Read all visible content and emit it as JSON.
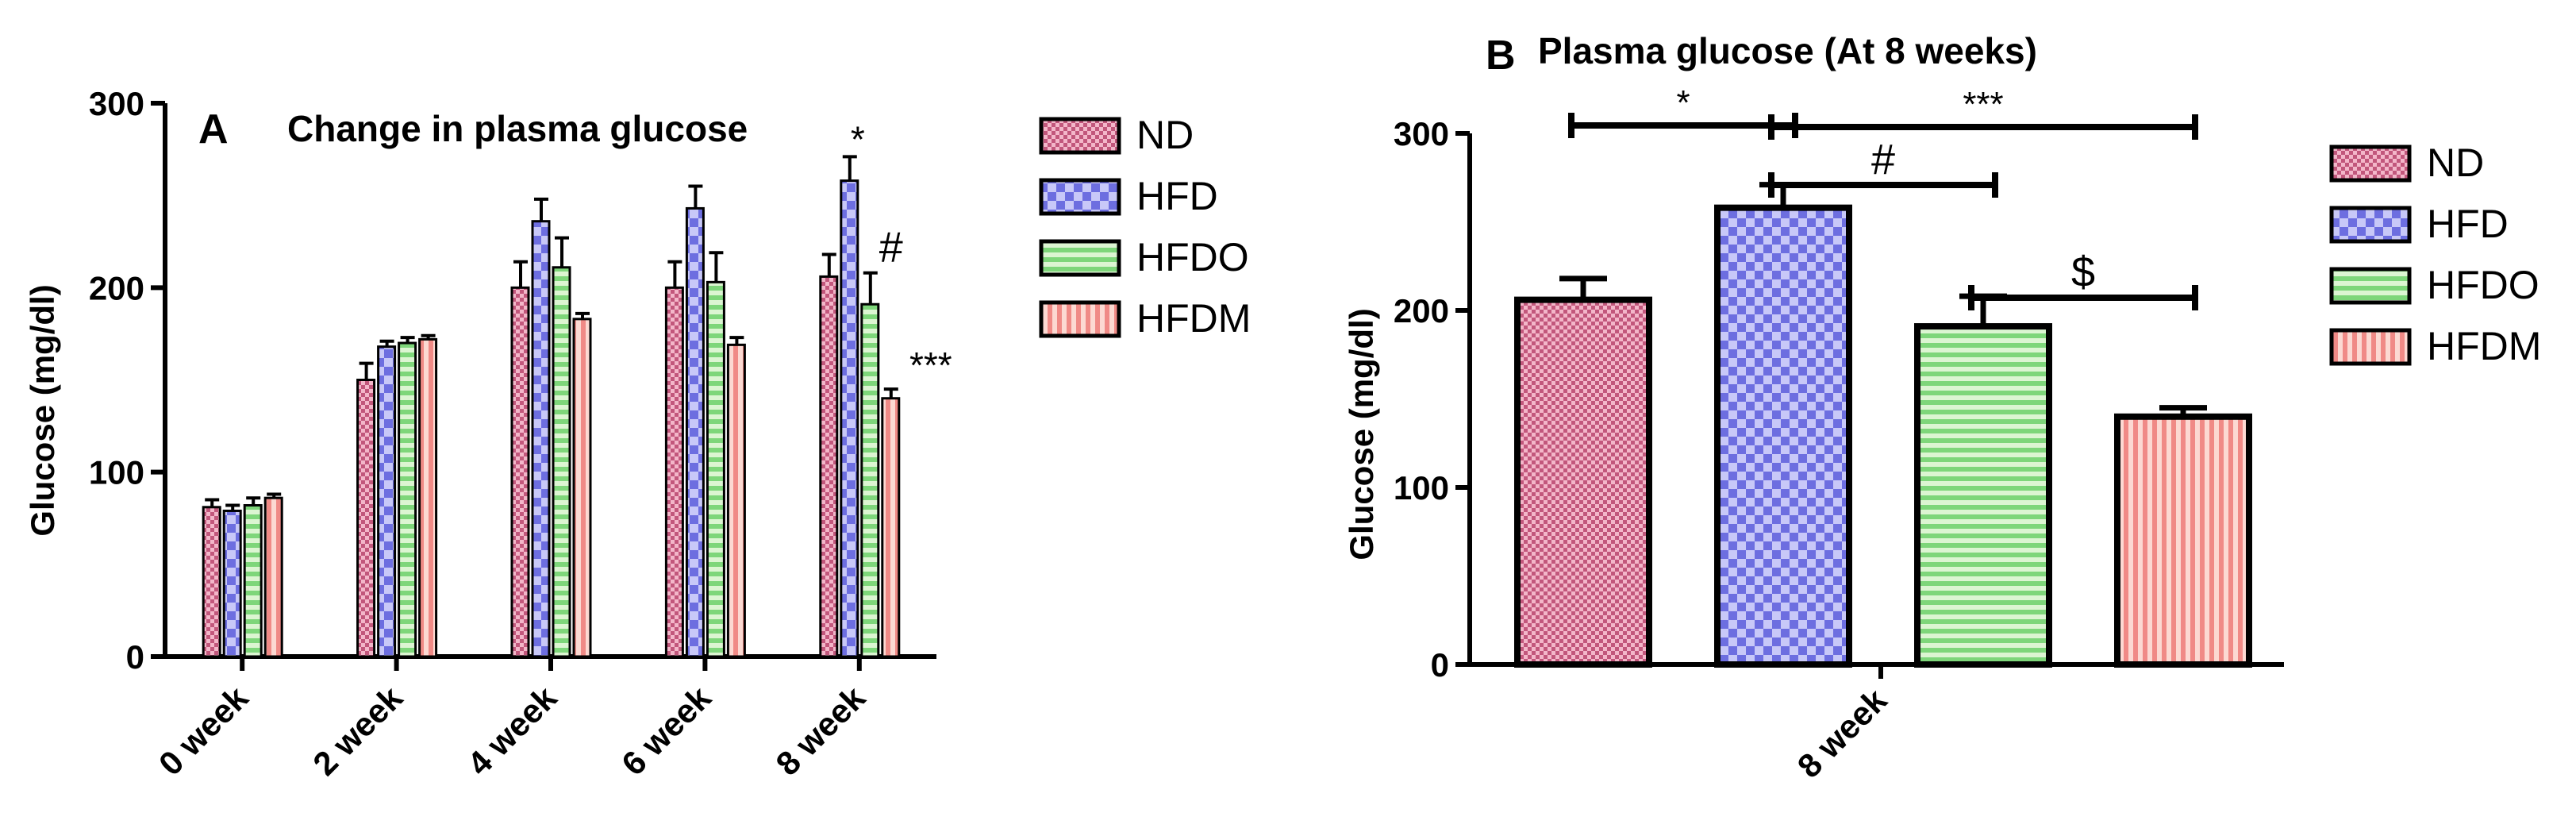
{
  "chart_data": [
    {
      "panel": "A",
      "type": "bar",
      "title": "Change in plasma glucose",
      "ylabel": "Glucose (mg/dl)",
      "xlabel": "",
      "ylim": [
        0,
        300
      ],
      "yticks": [
        0,
        100,
        200,
        300
      ],
      "categories": [
        "0 week",
        "2 week",
        "4 week",
        "6 week",
        "8 week"
      ],
      "series": [
        {
          "name": "ND",
          "values": [
            81,
            150,
            200,
            200,
            206
          ],
          "errors": [
            4,
            9,
            14,
            14,
            12
          ]
        },
        {
          "name": "HFD",
          "values": [
            79,
            168,
            236,
            243,
            258
          ],
          "errors": [
            3,
            3,
            12,
            12,
            13
          ]
        },
        {
          "name": "HFDO",
          "values": [
            82,
            170,
            211,
            203,
            191
          ],
          "errors": [
            4,
            3,
            16,
            16,
            17
          ]
        },
        {
          "name": "HFDM",
          "values": [
            86,
            172,
            183,
            169,
            140
          ],
          "errors": [
            2,
            2,
            3,
            4,
            5
          ]
        }
      ],
      "annotations": [
        {
          "category": "8 week",
          "series": "HFD",
          "text": "*"
        },
        {
          "category": "8 week",
          "series": "HFDO",
          "text": "#"
        },
        {
          "category": "8 week",
          "series": "HFDM",
          "text": "***"
        }
      ],
      "legend_position": "right"
    },
    {
      "panel": "B",
      "type": "bar",
      "title": "Plasma glucose (At 8 weeks)",
      "ylabel": "Glucose (mg/dl)",
      "xlabel": "8 week",
      "ylim": [
        0,
        300
      ],
      "yticks": [
        0,
        100,
        200,
        300
      ],
      "categories": [
        "ND",
        "HFD",
        "HFDO",
        "HFDM"
      ],
      "values": [
        206,
        258,
        191,
        140
      ],
      "errors": [
        12,
        13,
        17,
        5
      ],
      "significance": [
        {
          "from": "ND",
          "to": "HFD",
          "text": "*"
        },
        {
          "from": "HFD",
          "to": "HFDM",
          "text": "***"
        },
        {
          "from": "HFD",
          "to": "HFDO",
          "text": "#"
        },
        {
          "from": "HFDO",
          "to": "HFDM",
          "text": "$"
        }
      ],
      "legend_position": "right"
    }
  ],
  "legend_items": [
    "ND",
    "HFD",
    "HFDO",
    "HFDM"
  ]
}
